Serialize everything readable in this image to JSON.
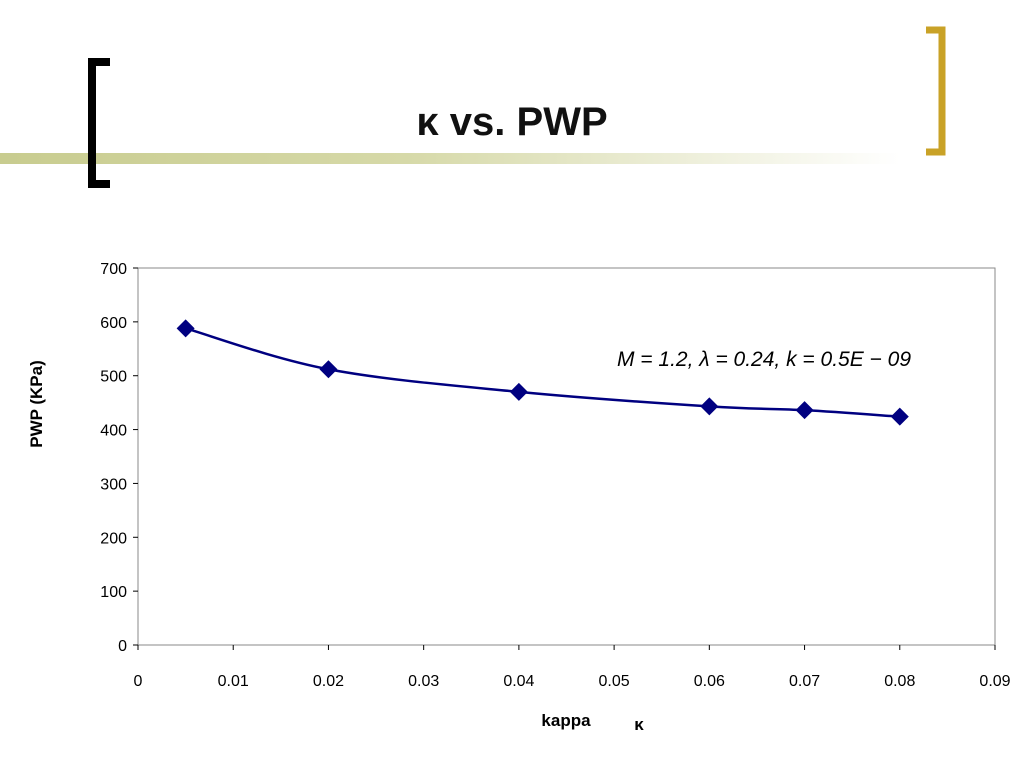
{
  "slide": {
    "title": "κ vs. PWP",
    "colors": {
      "left_bracket": "#000000",
      "right_bracket": "#C9A227",
      "band": "#C8CC8F"
    }
  },
  "chart_data": {
    "type": "line",
    "x": [
      0.005,
      0.02,
      0.04,
      0.06,
      0.07,
      0.08
    ],
    "series": [
      {
        "values": [
          588,
          512,
          470,
          443,
          436,
          424
        ],
        "color": "#000080"
      }
    ],
    "xlabel": "kappa",
    "xlabel_symbol": "κ",
    "ylabel": "PWP (KPa)",
    "xlim": [
      0,
      0.09
    ],
    "ylim": [
      0,
      700
    ],
    "xticks": [
      "0",
      "0.01",
      "0.02",
      "0.03",
      "0.04",
      "0.05",
      "0.06",
      "0.07",
      "0.08",
      "0.09"
    ],
    "yticks": [
      "0",
      "100",
      "200",
      "300",
      "400",
      "500",
      "600",
      "700"
    ],
    "annotation": "M = 1.2, λ = 0.24, k = 0.5E − 09",
    "grid": false,
    "legend": "none",
    "marker": "diamond"
  }
}
